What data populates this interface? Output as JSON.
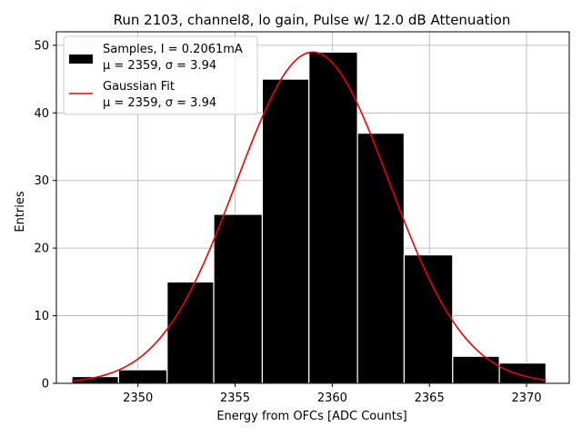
{
  "chart_data": {
    "type": "bar",
    "title": "Run 2103, channel8, lo gain, Pulse w/ 12.0 dB Attenuation",
    "xlabel": "Energy from OFCs [ADC Counts]",
    "ylabel": "Entries",
    "xlim": [
      2345.8,
      2372.2
    ],
    "ylim": [
      0,
      52
    ],
    "xticks": [
      2350,
      2355,
      2360,
      2365,
      2370
    ],
    "yticks": [
      0,
      10,
      20,
      30,
      40,
      50
    ],
    "grid": true,
    "legend_position": "top-left",
    "bin_edges": [
      2346.6,
      2349.0,
      2351.5,
      2353.9,
      2356.4,
      2358.8,
      2361.3,
      2363.7,
      2366.2,
      2368.6,
      2371.0
    ],
    "counts": [
      1,
      2,
      15,
      25,
      45,
      49,
      37,
      19,
      4,
      3
    ],
    "series": [
      {
        "name": "Samples, I = 0.2061mA",
        "stats": "μ = 2359, σ = 3.94",
        "kind": "histogram",
        "color": "#000000"
      },
      {
        "name": "Gaussian Fit",
        "stats": "μ = 2359, σ = 3.94",
        "kind": "line",
        "color": "#ee0000",
        "mu": 2359,
        "sigma": 3.94,
        "amplitude": 49,
        "x_range": [
          2346.6,
          2371.0
        ]
      }
    ]
  }
}
